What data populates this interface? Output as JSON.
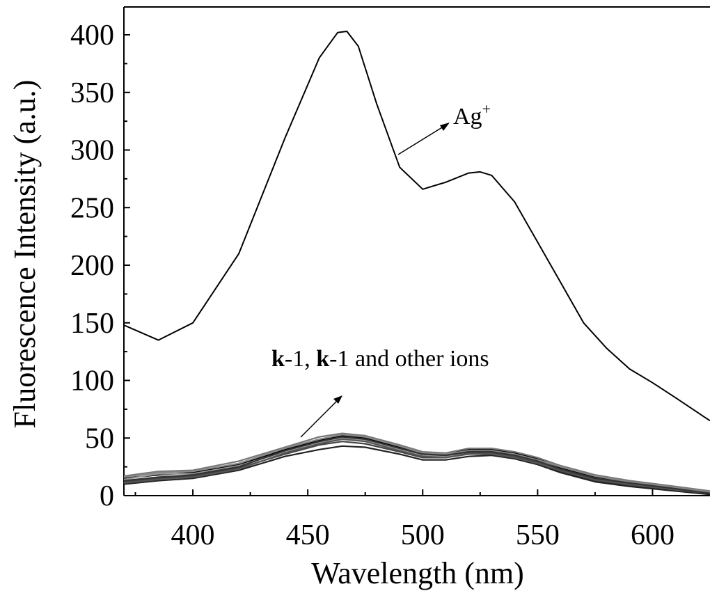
{
  "chart_data": {
    "type": "line",
    "xlabel": "Wavelength (nm)",
    "ylabel": "Fluorescence Intensity (a.u.)",
    "xlim": [
      370,
      625
    ],
    "ylim": [
      0,
      420
    ],
    "xticks": [
      400,
      450,
      500,
      550,
      600
    ],
    "yticks": [
      0,
      50,
      100,
      150,
      200,
      250,
      300,
      350,
      400
    ],
    "xtick_labels": [
      "400",
      "450",
      "500",
      "550",
      "600"
    ],
    "ytick_labels": [
      "0",
      "50",
      "100",
      "150",
      "200",
      "250",
      "300",
      "350",
      "400"
    ],
    "grid": false,
    "annotations": {
      "ag": {
        "base": "Ag",
        "sup": "+"
      },
      "others": {
        "bold1": "k",
        "rest1": "-1, ",
        "bold2": "k",
        "rest2": "-1",
        "tail": " and other ions"
      }
    },
    "series": [
      {
        "color": "#000000",
        "x": [
          370,
          385,
          400,
          420,
          440,
          455,
          463,
          467,
          472,
          480,
          490,
          500,
          510,
          520,
          525,
          530,
          540,
          550,
          560,
          570,
          580,
          590,
          600,
          610,
          625
        ],
        "y": [
          148,
          135,
          150,
          210,
          310,
          380,
          402,
          403,
          390,
          340,
          285,
          266,
          272,
          280,
          281,
          278,
          255,
          220,
          185,
          150,
          128,
          110,
          98,
          85,
          65
        ]
      },
      {
        "color": "#000000",
        "x": [
          370,
          385,
          400,
          420,
          440,
          455,
          465,
          475,
          490,
          500,
          510,
          520,
          530,
          540,
          550,
          560,
          575,
          590,
          610,
          625
        ],
        "y": [
          15,
          18,
          20,
          27,
          40,
          48,
          52,
          50,
          42,
          36,
          36,
          40,
          40,
          37,
          32,
          24,
          16,
          12,
          7,
          3
        ]
      },
      {
        "color": "#444444",
        "x": [
          370,
          385,
          400,
          420,
          440,
          455,
          465,
          475,
          490,
          500,
          510,
          520,
          530,
          540,
          550,
          560,
          575,
          590,
          610,
          625
        ],
        "y": [
          12,
          15,
          17,
          24,
          36,
          44,
          47,
          45,
          38,
          33,
          33,
          37,
          37,
          34,
          29,
          21,
          13,
          9,
          5,
          2
        ]
      },
      {
        "color": "#777777",
        "x": [
          370,
          385,
          400,
          420,
          440,
          455,
          465,
          475,
          490,
          500,
          510,
          520,
          530,
          540,
          550,
          560,
          575,
          590,
          610,
          625
        ],
        "y": [
          17,
          21,
          22,
          30,
          42,
          51,
          54,
          52,
          44,
          38,
          37,
          41,
          41,
          38,
          33,
          26,
          18,
          13,
          8,
          4
        ]
      },
      {
        "color": "#222222",
        "x": [
          370,
          385,
          400,
          420,
          440,
          455,
          465,
          475,
          490,
          500,
          510,
          520,
          530,
          540,
          550,
          560,
          575,
          590,
          610,
          625
        ],
        "y": [
          10,
          13,
          15,
          22,
          34,
          40,
          43,
          42,
          36,
          31,
          31,
          34,
          35,
          32,
          27,
          20,
          12,
          8,
          4,
          1
        ]
      },
      {
        "color": "#999999",
        "x": [
          370,
          385,
          400,
          420,
          440,
          455,
          465,
          475,
          490,
          500,
          510,
          520,
          530,
          540,
          550,
          560,
          575,
          590,
          610,
          625
        ],
        "y": [
          14,
          19,
          19,
          26,
          38,
          46,
          50,
          48,
          40,
          35,
          34,
          38,
          38,
          35,
          30,
          23,
          15,
          11,
          6,
          3
        ]
      },
      {
        "color": "#555555",
        "x": [
          370,
          385,
          400,
          420,
          440,
          455,
          465,
          475,
          490,
          500,
          510,
          520,
          530,
          540,
          550,
          560,
          575,
          590,
          610,
          625
        ],
        "y": [
          11,
          14,
          16,
          23,
          37,
          45,
          49,
          47,
          39,
          34,
          33,
          36,
          36,
          33,
          28,
          22,
          14,
          10,
          5,
          2
        ]
      },
      {
        "color": "#888888",
        "x": [
          370,
          385,
          400,
          420,
          440,
          455,
          465,
          475,
          490,
          500,
          510,
          520,
          530,
          540,
          550,
          560,
          575,
          590,
          610,
          625
        ],
        "y": [
          16,
          20,
          21,
          28,
          41,
          49,
          53,
          51,
          43,
          37,
          36,
          39,
          39,
          36,
          31,
          25,
          17,
          12,
          7,
          3
        ]
      },
      {
        "color": "#333333",
        "x": [
          370,
          385,
          400,
          420,
          440,
          455,
          465,
          475,
          490,
          500,
          510,
          520,
          530,
          540,
          550,
          560,
          575,
          590,
          610,
          625
        ],
        "y": [
          13,
          16,
          18,
          25,
          39,
          47,
          51,
          49,
          41,
          36,
          35,
          38,
          38,
          35,
          30,
          23,
          15,
          11,
          6,
          2
        ]
      }
    ]
  }
}
